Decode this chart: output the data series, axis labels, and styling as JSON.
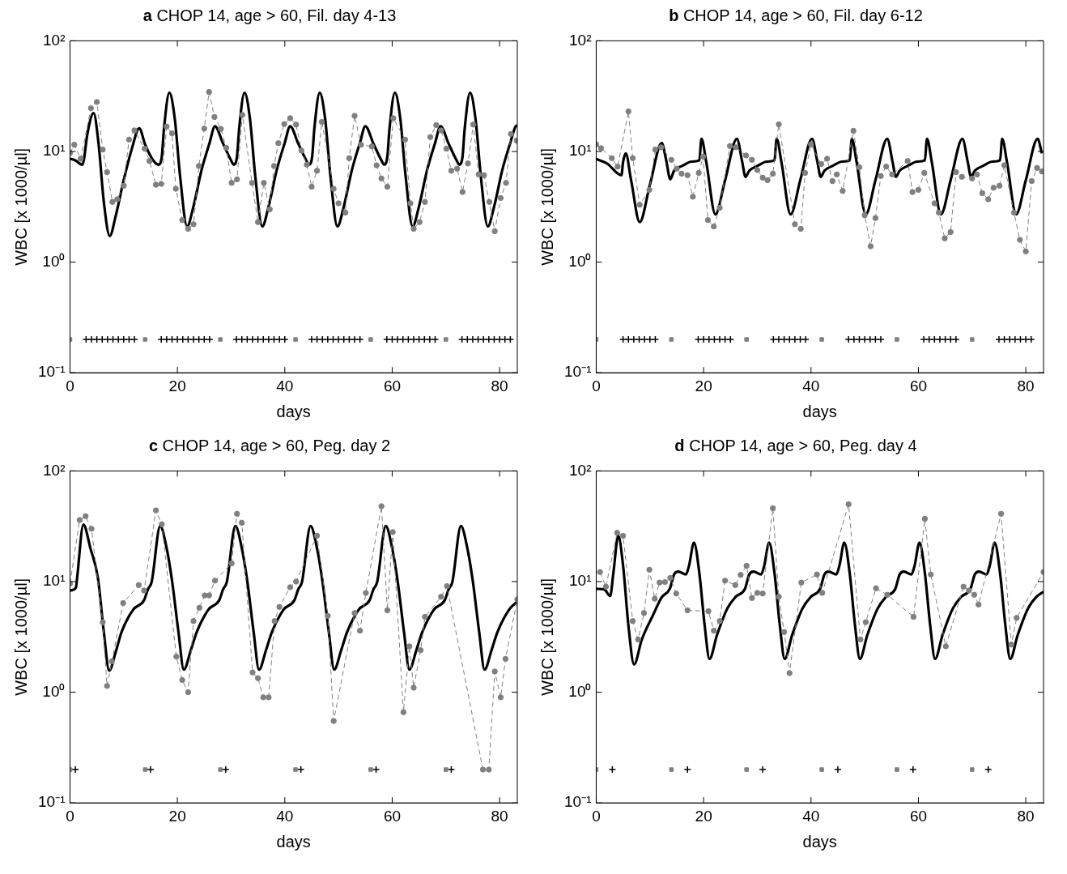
{
  "chart_data": [
    {
      "type": "line",
      "title": "a CHOP 14, age > 60, Fil. day 4-13",
      "xlabel": "days",
      "ylabel": "WBC [x 1000/µl]",
      "xlim": [
        0,
        83.3
      ],
      "xticks": [
        0,
        20,
        40,
        60,
        80
      ],
      "ylim": [
        0.1,
        100
      ],
      "yticks": [
        {
          "value": 0.1,
          "label": "10⁻¹"
        },
        {
          "value": 1,
          "label": "10⁰"
        },
        {
          "value": 10,
          "label": "10¹"
        },
        {
          "value": 100,
          "label": "10²"
        }
      ],
      "log": "y",
      "legend": false,
      "series": [
        {
          "type": "line",
          "color": "#808080",
          "line_style": "dashed",
          "marker": "circle",
          "x": [
            0,
            0.8,
            2,
            3.9,
            5,
            6.1,
            6.9,
            7.9,
            8.8,
            10,
            11,
            12,
            13.9,
            14.8,
            16,
            17,
            18,
            19,
            19.7,
            20.9,
            22,
            23,
            24,
            25,
            25.9,
            26.9,
            28.1,
            29.1,
            30.1,
            31.1,
            32.1,
            33.9,
            35,
            36.1,
            37.2,
            38,
            38.8,
            39.9,
            41,
            42.1,
            43.1,
            44.1,
            45,
            46,
            46.9,
            49.1,
            50,
            51.3,
            52,
            53,
            54.2,
            56.2,
            57.1,
            58,
            59.1,
            60.2,
            62.4,
            63.4,
            64,
            65.1,
            66.1,
            67.1,
            68.2,
            69.1,
            70.1,
            71,
            72.1,
            73.1,
            74.1,
            75.1,
            76.1,
            77.1,
            78.1,
            79.1,
            80.2,
            81.2,
            82.1,
            83.2
          ],
          "values": [
            9.7,
            11.5,
            8.6,
            24.6,
            28,
            10.4,
            6.5,
            3.5,
            3.7,
            4.9,
            12.8,
            15.5,
            10.6,
            8.2,
            5.0,
            5.1,
            16.8,
            14.6,
            4.6,
            2.4,
            2.0,
            2.2,
            7.4,
            16.1,
            34.5,
            20.5,
            16,
            10.8,
            5.2,
            5.6,
            21.4,
            5.2,
            2.3,
            5.2,
            3.0,
            7.4,
            11.9,
            17.7,
            20,
            17.5,
            10.2,
            7.6,
            4.8,
            6.7,
            18.5,
            4.6,
            3.4,
            2.8,
            8.7,
            21,
            11.5,
            11.1,
            7.5,
            5.7,
            4.8,
            20,
            12.8,
            3.4,
            2.0,
            2.3,
            3.5,
            13.5,
            17.3,
            15.5,
            10.6,
            6.7,
            7.0,
            4.3,
            7.8,
            17.5,
            6.2,
            6.1,
            3.5,
            1.9,
            3.8,
            5.2,
            14.4,
            12.5
          ]
        },
        {
          "type": "line",
          "color": "#000000",
          "line_style": "solid",
          "marker": "none",
          "x": [
            0,
            1,
            2.3,
            2.6,
            3.2,
            4.4,
            5.3,
            6.3,
            7.4,
            8.5,
            10,
            11.5,
            12.9,
            14,
            15.5,
            16.5,
            17.1,
            17.5,
            18.5,
            19.5,
            20.5,
            21.8,
            23,
            24.5,
            26,
            27,
            28.5,
            30,
            30.5,
            31.1,
            31.5,
            32.5,
            33.5,
            34.5,
            35.8,
            37,
            38.5,
            40,
            41,
            42.5,
            44,
            44.5,
            45.1,
            45.5,
            46.5,
            47.5,
            48.5,
            49.8,
            51,
            52.5,
            54,
            55,
            56.5,
            58,
            58.5,
            59.1,
            59.5,
            60.5,
            61.5,
            62.5,
            63.8,
            65,
            66.5,
            68,
            69,
            70.5,
            72,
            72.5,
            73.1,
            73.5,
            74.5,
            75.5,
            76.5,
            77.8,
            79,
            80.5,
            82,
            83,
            83.3
          ],
          "values": [
            8.6,
            8.3,
            7.6,
            8.5,
            14,
            22.2,
            12,
            3.5,
            1.72,
            2.6,
            5.5,
            10.5,
            16.2,
            11.5,
            8.3,
            7.6,
            9,
            16,
            34,
            20,
            6,
            2.1,
            3.2,
            6.8,
            12,
            16.9,
            11.8,
            8.3,
            7.6,
            9,
            16,
            34,
            20,
            6,
            2.1,
            3.2,
            6.8,
            12,
            16.9,
            11.8,
            8.3,
            7.6,
            9,
            16,
            34,
            20,
            6,
            2.1,
            3.2,
            6.8,
            12,
            16.9,
            11.8,
            8.3,
            7.6,
            9,
            16,
            34,
            20,
            6,
            2.1,
            3.2,
            6.8,
            12,
            16.9,
            11.8,
            8.3,
            7.6,
            9,
            16,
            34,
            20,
            6,
            2.1,
            3.2,
            6.8,
            12,
            16.9,
            17.2
          ]
        },
        {
          "type": "scatter",
          "color": "#808080",
          "marker": "square",
          "x": [
            0,
            14,
            28,
            42,
            56,
            70
          ],
          "values": [
            0.2,
            0.2,
            0.2,
            0.2,
            0.2,
            0.2
          ]
        },
        {
          "type": "scatter",
          "color": "#000000",
          "marker": "cross",
          "x": [
            3,
            4,
            5,
            6,
            7,
            8,
            9,
            10,
            11,
            12,
            17,
            18,
            19,
            20,
            21,
            22,
            23,
            24,
            25,
            26,
            31,
            32,
            33,
            34,
            35,
            36,
            37,
            38,
            39,
            40,
            45,
            46,
            47,
            48,
            49,
            50,
            51,
            52,
            53,
            54,
            59,
            60,
            61,
            62,
            63,
            64,
            65,
            66,
            67,
            68,
            73,
            74,
            75,
            76,
            77,
            78,
            79,
            80,
            81,
            82
          ],
          "values": [
            0.2,
            0.2,
            0.2,
            0.2,
            0.2,
            0.2,
            0.2,
            0.2,
            0.2,
            0.2,
            0.2,
            0.2,
            0.2,
            0.2,
            0.2,
            0.2,
            0.2,
            0.2,
            0.2,
            0.2,
            0.2,
            0.2,
            0.2,
            0.2,
            0.2,
            0.2,
            0.2,
            0.2,
            0.2,
            0.2,
            0.2,
            0.2,
            0.2,
            0.2,
            0.2,
            0.2,
            0.2,
            0.2,
            0.2,
            0.2,
            0.2,
            0.2,
            0.2,
            0.2,
            0.2,
            0.2,
            0.2,
            0.2,
            0.2,
            0.2,
            0.2,
            0.2,
            0.2,
            0.2,
            0.2,
            0.2,
            0.2,
            0.2,
            0.2,
            0.2
          ]
        }
      ]
    },
    {
      "type": "line",
      "title": "b CHOP 14, age > 60, Fil. day 6-12",
      "xlabel": "days",
      "ylabel": "WBC [x 1000/µl]",
      "xlim": [
        0,
        83.3
      ],
      "xticks": [
        0,
        20,
        40,
        60,
        80
      ],
      "ylim": [
        0.1,
        100
      ],
      "yticks": [
        {
          "value": 0.1,
          "label": "10⁻¹"
        },
        {
          "value": 1,
          "label": "10⁰"
        },
        {
          "value": 10,
          "label": "10¹"
        },
        {
          "value": 100,
          "label": "10²"
        }
      ],
      "log": "y",
      "legend": false,
      "series": [
        {
          "type": "line",
          "color": "#808080",
          "line_style": "dashed",
          "marker": "circle",
          "x": [
            0,
            0.9,
            2.9,
            4,
            6,
            6.8,
            8.1,
            9.9,
            11,
            12.1,
            14,
            15,
            15.9,
            17,
            18,
            19.1,
            19.9,
            20.8,
            21.9,
            23,
            24.9,
            26,
            27.9,
            29,
            30,
            31,
            31.9,
            32.9,
            34,
            37,
            38.1,
            38.9,
            40,
            41.9,
            43,
            44,
            44.8,
            45.9,
            47.9,
            49,
            50,
            51.1,
            52,
            53,
            54,
            55.1,
            58,
            58.9,
            60,
            61.1,
            63,
            63.8,
            64.9,
            66,
            67,
            68.1,
            70,
            70.9,
            71.9,
            73,
            74,
            75.1,
            76,
            77.8,
            78.9,
            80,
            81.1,
            82.1,
            83
          ],
          "values": [
            11.6,
            10.7,
            8.7,
            7.3,
            23,
            8.7,
            3.3,
            4.5,
            10.4,
            10.9,
            8.4,
            7.0,
            6.3,
            6.1,
            3.9,
            6.4,
            9.0,
            2.4,
            2.1,
            3.1,
            11.2,
            10.9,
            9.2,
            8.4,
            6.8,
            5.8,
            5.5,
            6.3,
            17.6,
            2.2,
            2.0,
            6.4,
            11.6,
            7.7,
            8.6,
            5.4,
            6.2,
            4.4,
            15.4,
            7.2,
            2.65,
            1.39,
            2.5,
            6.0,
            7.3,
            6.2,
            8.2,
            4.3,
            4.5,
            6.4,
            3.4,
            2.8,
            1.64,
            1.87,
            6.5,
            5.9,
            5.7,
            6.2,
            4.2,
            3.7,
            4.7,
            4.9,
            7.5,
            2.8,
            1.59,
            1.25,
            5.4,
            7.1,
            6.6
          ]
        },
        {
          "type": "line",
          "color": "#000000",
          "line_style": "solid",
          "marker": "none",
          "x": [
            0,
            2,
            4.7,
            5,
            5.5,
            6.5,
            8.1,
            10,
            12.2,
            13,
            13.8,
            14.5,
            16,
            17.8,
            19.2,
            19.6,
            20.5,
            22.2,
            24,
            26.2,
            27.2,
            27.8,
            28.5,
            30,
            31.8,
            33.2,
            33.6,
            34.5,
            36.2,
            38,
            40.2,
            41.2,
            41.8,
            42.5,
            44,
            45.8,
            47.2,
            47.6,
            48.5,
            50.2,
            52,
            54.2,
            55.2,
            55.8,
            56.5,
            58,
            59.8,
            61.2,
            61.6,
            62.5,
            64.2,
            66,
            68.2,
            69.2,
            69.8,
            70.5,
            72,
            73.8,
            75.2,
            75.6,
            76.5,
            78.2,
            80,
            82.2,
            83
          ],
          "values": [
            8.55,
            7.8,
            6.1,
            8,
            9.6,
            5.5,
            2.3,
            5,
            11.9,
            8.5,
            5.6,
            6.7,
            7.4,
            8.1,
            8.3,
            13,
            8,
            2.7,
            5.5,
            13,
            8,
            5.9,
            6.7,
            7.4,
            8.1,
            8.3,
            13,
            8,
            2.7,
            5.5,
            13,
            8,
            5.9,
            6.7,
            7.4,
            8.1,
            8.3,
            13,
            8,
            2.7,
            5.5,
            13,
            8,
            5.9,
            6.7,
            7.4,
            8.1,
            8.3,
            13,
            8,
            2.7,
            5.5,
            13,
            8,
            5.9,
            6.7,
            7.4,
            8.1,
            8.3,
            13,
            8,
            2.7,
            5.5,
            13,
            9.6
          ]
        },
        {
          "type": "scatter",
          "color": "#808080",
          "marker": "square",
          "x": [
            0,
            14,
            28,
            42,
            56,
            70
          ],
          "values": [
            0.2,
            0.2,
            0.2,
            0.2,
            0.2,
            0.2
          ]
        },
        {
          "type": "scatter",
          "color": "#000000",
          "marker": "cross",
          "x": [
            5,
            6,
            7,
            8,
            9,
            10,
            11,
            19,
            20,
            21,
            22,
            23,
            24,
            25,
            33,
            34,
            35,
            36,
            37,
            38,
            39,
            47,
            48,
            49,
            50,
            51,
            52,
            53,
            61,
            62,
            63,
            64,
            65,
            66,
            67,
            75,
            76,
            77,
            78,
            79,
            80,
            81
          ],
          "values": [
            0.2,
            0.2,
            0.2,
            0.2,
            0.2,
            0.2,
            0.2,
            0.2,
            0.2,
            0.2,
            0.2,
            0.2,
            0.2,
            0.2,
            0.2,
            0.2,
            0.2,
            0.2,
            0.2,
            0.2,
            0.2,
            0.2,
            0.2,
            0.2,
            0.2,
            0.2,
            0.2,
            0.2,
            0.2,
            0.2,
            0.2,
            0.2,
            0.2,
            0.2,
            0.2,
            0.2,
            0.2,
            0.2,
            0.2,
            0.2,
            0.2,
            0.2
          ]
        }
      ]
    },
    {
      "type": "line",
      "title": "c CHOP 14, age > 60, Peg. day 2",
      "xlabel": "days",
      "ylabel": "WBC [x 1000/µl]",
      "xlim": [
        0,
        83.3
      ],
      "xticks": [
        0,
        20,
        40,
        60,
        80
      ],
      "ylim": [
        0.1,
        100
      ],
      "yticks": [
        {
          "value": 0.1,
          "label": "10⁻¹"
        },
        {
          "value": 1,
          "label": "10⁰"
        },
        {
          "value": 10,
          "label": "10¹"
        },
        {
          "value": 100,
          "label": "10²"
        }
      ],
      "log": "y",
      "legend": false,
      "series": [
        {
          "type": "line",
          "color": "#808080",
          "line_style": "dashed",
          "marker": "circle",
          "x": [
            0,
            1.8,
            2.9,
            4,
            6.1,
            6.9,
            7.8,
            9.9,
            12.8,
            13.8,
            16,
            17.1,
            19.8,
            20.9,
            22,
            23,
            24.1,
            25.1,
            25.9,
            27,
            30.1,
            31.1,
            32,
            34,
            35,
            36,
            37,
            38.1,
            39,
            41,
            42.1,
            46,
            48,
            49.1,
            53,
            54,
            55.1,
            58,
            59.1,
            60.1,
            62.1,
            63.2,
            64,
            65.3,
            66.1,
            69.1,
            70.2,
            76.9,
            78,
            79.1,
            80.2,
            81.1,
            83.3
          ],
          "values": [
            9.6,
            36,
            39,
            30,
            4.3,
            1.14,
            1.9,
            6.4,
            9.3,
            8.3,
            44,
            33,
            2.1,
            1.29,
            1.0,
            4.4,
            5.8,
            7.5,
            7.5,
            10.2,
            14.6,
            41,
            34,
            1.51,
            1.34,
            0.9,
            0.9,
            4.4,
            5.9,
            8.9,
            10,
            26,
            4.9,
            0.55,
            5.2,
            3.6,
            7.9,
            48,
            5.5,
            28,
            0.66,
            2.6,
            1.1,
            2.4,
            4.8,
            7.3,
            9.1,
            0.2,
            0.2,
            1.54,
            0.9,
            2.0,
            6.9
          ]
        },
        {
          "type": "line",
          "color": "#000000",
          "line_style": "solid",
          "marker": "none",
          "x": [
            0,
            1.1,
            1.3,
            2.5,
            3.8,
            5.2,
            6.3,
            7.3,
            8.5,
            9.6,
            11.8,
            13.8,
            14.5,
            15.2,
            16.8,
            18,
            19,
            20.2,
            21.2,
            22.5,
            23.6,
            25.8,
            27.8,
            28.5,
            29.2,
            30.8,
            32,
            33,
            34.2,
            35.2,
            36.5,
            37.6,
            39.8,
            41.8,
            42.5,
            43.2,
            44.8,
            46,
            47,
            48.2,
            49.2,
            50.5,
            51.6,
            53.8,
            55.8,
            56.5,
            57.2,
            58.8,
            60,
            61,
            62.2,
            63.2,
            64.5,
            65.6,
            67.8,
            69.8,
            70.5,
            71.2,
            72.8,
            74,
            75,
            76.2,
            77.2,
            78.5,
            79.6,
            81.8,
            83.3
          ],
          "values": [
            8.3,
            8.8,
            10.5,
            32.8,
            20,
            10.8,
            3.5,
            1.57,
            2.3,
            3.5,
            5.6,
            6.8,
            8.5,
            9.9,
            31.8,
            20,
            10.2,
            3.5,
            1.6,
            2.4,
            3.5,
            5.6,
            6.8,
            8.5,
            9.9,
            31.8,
            20,
            10.2,
            3.5,
            1.6,
            2.4,
            3.5,
            5.6,
            6.8,
            8.5,
            9.9,
            31.8,
            20,
            10.2,
            3.5,
            1.6,
            2.4,
            3.5,
            5.6,
            6.8,
            8.5,
            9.9,
            31.8,
            20,
            10.2,
            3.5,
            1.6,
            2.4,
            3.5,
            5.6,
            6.8,
            8.5,
            9.9,
            31.8,
            20,
            10.2,
            3.5,
            1.6,
            2.4,
            3.5,
            5.6,
            6.6
          ]
        },
        {
          "type": "scatter",
          "color": "#808080",
          "marker": "square",
          "x": [
            0,
            14,
            28,
            42,
            56,
            70
          ],
          "values": [
            0.2,
            0.2,
            0.2,
            0.2,
            0.2,
            0.2
          ]
        },
        {
          "type": "scatter",
          "color": "#000000",
          "marker": "cross",
          "x": [
            1,
            15,
            29,
            43,
            57,
            71
          ],
          "values": [
            0.2,
            0.2,
            0.2,
            0.2,
            0.2,
            0.2
          ]
        }
      ]
    },
    {
      "type": "line",
      "title": "d CHOP 14, age > 60, Peg. day 4",
      "xlabel": "days",
      "ylabel": "WBC [x 1000/µl]",
      "xlim": [
        0,
        83.3
      ],
      "xticks": [
        0,
        20,
        40,
        60,
        80
      ],
      "ylim": [
        0.1,
        100
      ],
      "yticks": [
        {
          "value": 0.1,
          "label": "10⁻¹"
        },
        {
          "value": 1,
          "label": "10⁰"
        },
        {
          "value": 10,
          "label": "10¹"
        },
        {
          "value": 100,
          "label": "10²"
        }
      ],
      "log": "y",
      "legend": false,
      "series": [
        {
          "type": "line",
          "color": "#808080",
          "line_style": "dashed",
          "marker": "circle",
          "x": [
            0.7,
            1.8,
            3.9,
            5,
            6.8,
            7.8,
            8.9,
            9.9,
            10.9,
            11.8,
            12.8,
            13.8,
            14.9,
            17,
            20.9,
            21.9,
            23,
            24,
            25.9,
            26.9,
            28,
            29,
            30,
            31,
            32.9,
            34,
            35,
            36,
            38.2,
            41.1,
            42.1,
            47,
            49.2,
            50.2,
            52.1,
            54.2,
            59.1,
            61.2,
            62.3,
            65.1,
            68.4,
            69.4,
            70.4,
            71.2,
            75.4,
            77.3,
            78.3,
            83.3
          ],
          "values": [
            12.2,
            9.0,
            27.6,
            25.9,
            4.4,
            3.0,
            5.2,
            12.8,
            7.0,
            9.8,
            9.9,
            10.8,
            7.8,
            5.5,
            5.4,
            3.6,
            4.4,
            10.2,
            9.3,
            11.5,
            13.9,
            7.1,
            7.9,
            7.8,
            46,
            7.3,
            3.5,
            1.49,
            9.8,
            11.6,
            7.9,
            50,
            3.0,
            4.3,
            8.7,
            7.6,
            4.8,
            37,
            11.6,
            2.6,
            9.0,
            8.3,
            7.6,
            6.2,
            41,
            2.7,
            4.7,
            12.2
          ]
        },
        {
          "type": "line",
          "color": "#000000",
          "line_style": "solid",
          "marker": "none",
          "x": [
            0,
            1.5,
            2.6,
            3.2,
            4.1,
            5,
            6,
            7.05,
            8.5,
            10.6,
            12.2,
            13.7,
            14.5,
            15.3,
            16.7,
            17.3,
            18.2,
            19.2,
            20.2,
            21.1,
            22.5,
            24.4,
            26,
            27.7,
            28.5,
            29.3,
            30.7,
            31.3,
            32.2,
            33.2,
            34.2,
            35.1,
            36.5,
            38.4,
            40,
            41.7,
            42.5,
            43.3,
            44.7,
            45.3,
            46.2,
            47.2,
            48.2,
            49.1,
            50.5,
            52.4,
            54,
            55.7,
            56.5,
            57.3,
            58.7,
            59.3,
            60.2,
            61.2,
            62.2,
            63.1,
            64.5,
            66.4,
            68,
            69.7,
            70.5,
            71.3,
            72.7,
            73.3,
            74.2,
            75.2,
            76.2,
            77.1,
            78.5,
            80.4,
            82,
            83.3
          ],
          "values": [
            8.6,
            8.5,
            7.4,
            12,
            26,
            14,
            4,
            1.78,
            3,
            5,
            7.2,
            8.6,
            11.6,
            12.3,
            11.6,
            14,
            22.5,
            12,
            4,
            2,
            3.3,
            5.7,
            7.3,
            8.6,
            11.6,
            12.3,
            11.6,
            14,
            22.5,
            12,
            4,
            2,
            3.3,
            5.7,
            7.3,
            8.6,
            11.6,
            12.3,
            11.6,
            14,
            22.5,
            12,
            4,
            2,
            3.3,
            5.7,
            7.3,
            8.6,
            11.6,
            12.3,
            11.6,
            14,
            22.5,
            12,
            4,
            2,
            3.3,
            5.7,
            7.3,
            8.6,
            11.6,
            12.3,
            11.6,
            14,
            22.5,
            12,
            4,
            2,
            3.3,
            5.7,
            7.3,
            8.1
          ]
        },
        {
          "type": "scatter",
          "color": "#808080",
          "marker": "square",
          "x": [
            0,
            14,
            28,
            42,
            56,
            70
          ],
          "values": [
            0.2,
            0.2,
            0.2,
            0.2,
            0.2,
            0.2
          ]
        },
        {
          "type": "scatter",
          "color": "#000000",
          "marker": "cross",
          "x": [
            3,
            17,
            31,
            45,
            59,
            73
          ],
          "values": [
            0.2,
            0.2,
            0.2,
            0.2,
            0.2,
            0.2
          ]
        }
      ]
    }
  ]
}
